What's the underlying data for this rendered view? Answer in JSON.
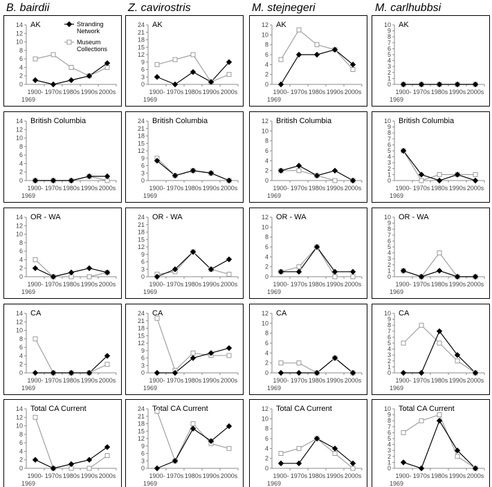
{
  "chart_data": {
    "type": "line",
    "categories": [
      "1900-\n1969",
      "1970s",
      "1980s",
      "1990s",
      "2000s"
    ],
    "category_labels": [
      [
        "1900-",
        "1969"
      ],
      [
        "1970s"
      ],
      [
        "1980s"
      ],
      [
        "1990s"
      ],
      [
        "2000s"
      ]
    ],
    "series_names": [
      "Stranding Network",
      "Museum Collections"
    ],
    "legend": {
      "line1": "Stranding",
      "line2": "Network",
      "line3": "Museum",
      "line4": "Collections",
      "placement": "top-right of first panel"
    },
    "species": [
      "B. bairdii",
      "Z. cavirostris",
      "M. stejnegeri",
      "M. carlhubbsi"
    ],
    "regions": [
      "AK",
      "British Columbia",
      "OR - WA",
      "CA",
      "Total CA Current"
    ],
    "y_axes": [
      {
        "ylim": [
          0,
          14
        ],
        "ticks": [
          0,
          2,
          4,
          6,
          8,
          10,
          12,
          14
        ]
      },
      {
        "ylim": [
          0,
          24
        ],
        "ticks": [
          0,
          3,
          6,
          9,
          12,
          15,
          18,
          21,
          24
        ]
      },
      {
        "ylim": [
          0,
          12
        ],
        "ticks": [
          0,
          2,
          4,
          6,
          8,
          10,
          12
        ]
      },
      {
        "ylim": [
          0,
          10
        ],
        "ticks": [
          0,
          1,
          2,
          3,
          4,
          5,
          6,
          7,
          8,
          9,
          10
        ]
      }
    ],
    "panels": [
      [
        {
          "stranding": [
            1,
            0,
            1,
            2,
            5
          ],
          "museum": [
            6,
            7,
            4,
            2,
            4
          ]
        },
        {
          "stranding": [
            0,
            0,
            0,
            1,
            1
          ],
          "museum": [
            0,
            0,
            0,
            1,
            0
          ]
        },
        {
          "stranding": [
            2,
            0,
            1,
            2,
            1
          ],
          "museum": [
            4,
            0,
            0,
            0,
            1
          ]
        },
        {
          "stranding": [
            0,
            0,
            0,
            0,
            4
          ],
          "museum": [
            8,
            0,
            0,
            0,
            2
          ]
        },
        {
          "stranding": [
            2,
            0,
            1,
            2,
            5
          ],
          "museum": [
            12,
            0,
            0,
            0,
            3
          ]
        }
      ],
      [
        {
          "stranding": [
            3,
            0,
            5,
            1,
            9
          ],
          "museum": [
            8,
            10,
            12,
            1,
            4
          ]
        },
        {
          "stranding": [
            8,
            2,
            4,
            3,
            0
          ],
          "museum": [
            9,
            2,
            4,
            3,
            0
          ]
        },
        {
          "stranding": [
            0,
            3,
            10,
            3,
            7
          ],
          "museum": [
            1,
            2,
            10,
            3,
            1
          ]
        },
        {
          "stranding": [
            0,
            0,
            6,
            8,
            10
          ],
          "museum": [
            22,
            1,
            8,
            7,
            7
          ]
        },
        {
          "stranding": [
            0,
            3,
            16,
            11,
            17
          ],
          "museum": [
            23,
            3,
            18,
            10,
            8
          ]
        }
      ],
      [
        {
          "stranding": [
            0,
            6,
            6,
            7,
            4
          ],
          "museum": [
            5,
            11,
            8,
            7,
            3
          ]
        },
        {
          "stranding": [
            2,
            3,
            1,
            2,
            0
          ],
          "museum": [
            2,
            2,
            1,
            0,
            0
          ]
        },
        {
          "stranding": [
            1,
            1,
            6,
            1,
            1
          ],
          "museum": [
            1,
            2,
            6,
            0,
            0
          ]
        },
        {
          "stranding": [
            0,
            0,
            0,
            3,
            0
          ],
          "museum": [
            2,
            2,
            0,
            3,
            0
          ]
        },
        {
          "stranding": [
            1,
            1,
            6,
            4,
            1
          ],
          "museum": [
            3,
            4,
            6,
            3,
            0
          ]
        }
      ],
      [
        {
          "stranding": [
            0,
            0,
            0,
            0,
            0
          ],
          "museum": [
            0,
            0,
            0,
            0,
            0
          ]
        },
        {
          "stranding": [
            5,
            1,
            0,
            1,
            0
          ],
          "museum": [
            5,
            0,
            1,
            1,
            1
          ]
        },
        {
          "stranding": [
            1,
            0,
            1,
            0,
            0
          ],
          "museum": [
            1,
            0,
            4,
            0,
            0
          ]
        },
        {
          "stranding": [
            0,
            0,
            7,
            3,
            0
          ],
          "museum": [
            5,
            8,
            5,
            2,
            0
          ]
        },
        {
          "stranding": [
            1,
            0,
            8,
            3,
            0
          ],
          "museum": [
            6,
            8,
            9,
            2,
            0
          ]
        }
      ]
    ]
  }
}
